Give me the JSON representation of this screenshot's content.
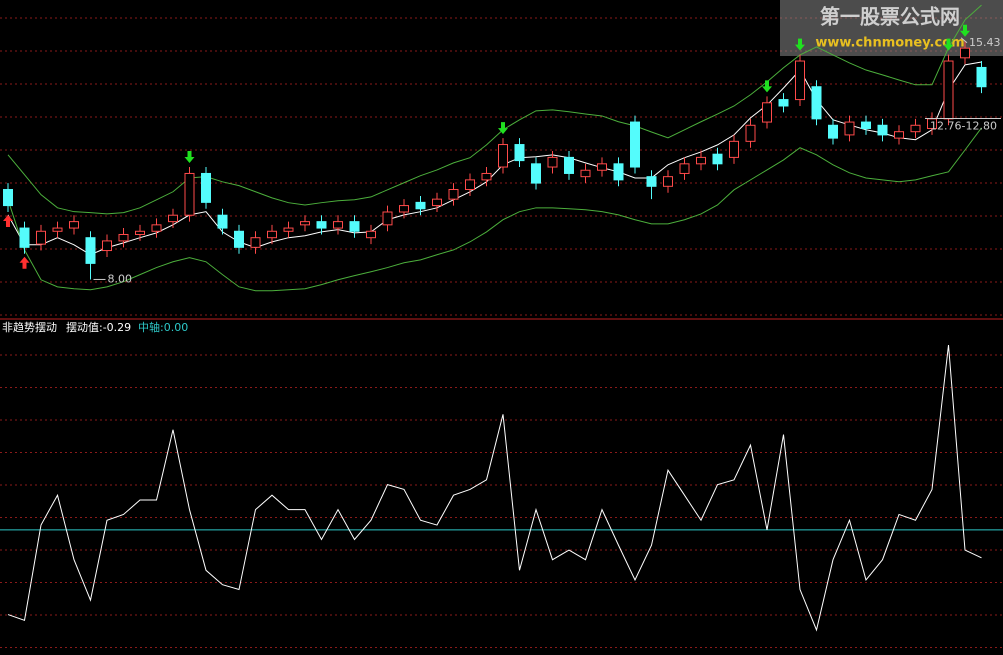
{
  "chart_data": {
    "type": "candlestick",
    "watermark": {
      "title": "第一股票公式网",
      "url": "www.chnmoney.com"
    },
    "ylim": [
      6.8,
      16.7
    ],
    "grid": true,
    "up_color": "#ff4a4a",
    "down_color": "#54fcfc",
    "open": [
      10.8,
      9.6,
      9.1,
      9.5,
      9.6,
      9.3,
      8.9,
      9.2,
      9.4,
      9.5,
      9.8,
      10.0,
      11.3,
      10.0,
      9.5,
      9.0,
      9.3,
      9.5,
      9.7,
      9.8,
      9.6,
      9.8,
      9.3,
      9.7,
      10.1,
      10.4,
      10.3,
      10.5,
      10.8,
      11.1,
      11.5,
      12.2,
      11.6,
      11.5,
      11.8,
      11.2,
      11.4,
      11.6,
      12.9,
      11.2,
      10.9,
      11.3,
      11.6,
      11.9,
      11.8,
      12.3,
      12.9,
      13.6,
      13.6,
      14.0,
      12.8,
      12.5,
      12.9,
      12.8,
      12.4,
      12.6,
      12.7,
      13.0,
      14.9,
      14.6
    ],
    "close": [
      10.3,
      9.0,
      9.5,
      9.6,
      9.8,
      8.5,
      9.2,
      9.4,
      9.5,
      9.7,
      10.0,
      11.3,
      10.4,
      9.6,
      9.0,
      9.3,
      9.5,
      9.6,
      9.8,
      9.6,
      9.8,
      9.5,
      9.5,
      10.1,
      10.3,
      10.2,
      10.5,
      10.8,
      11.1,
      11.3,
      12.2,
      11.7,
      11.0,
      11.8,
      11.3,
      11.4,
      11.6,
      11.1,
      11.5,
      10.9,
      11.2,
      11.6,
      11.8,
      11.6,
      12.3,
      12.8,
      13.5,
      13.4,
      14.8,
      13.0,
      12.4,
      12.9,
      12.7,
      12.5,
      12.6,
      12.8,
      13.0,
      14.8,
      15.2,
      14.0
    ],
    "high": [
      11.0,
      9.8,
      9.7,
      9.8,
      10.0,
      9.5,
      9.4,
      9.6,
      9.7,
      9.9,
      10.2,
      11.5,
      11.5,
      10.2,
      9.7,
      9.5,
      9.7,
      9.8,
      10.0,
      10.0,
      10.0,
      10.0,
      9.7,
      10.3,
      10.5,
      10.6,
      10.7,
      11.0,
      11.3,
      11.5,
      12.4,
      12.4,
      11.8,
      12.0,
      12.0,
      11.6,
      11.8,
      11.8,
      13.1,
      11.4,
      11.4,
      11.8,
      12.0,
      12.1,
      12.5,
      13.0,
      13.7,
      13.8,
      15.0,
      14.2,
      13.0,
      13.1,
      13.1,
      13.0,
      12.8,
      13.0,
      13.2,
      15.0,
      15.43,
      14.8
    ],
    "low": [
      10.1,
      8.8,
      8.9,
      9.3,
      9.4,
      8.0,
      8.7,
      9.0,
      9.2,
      9.3,
      9.6,
      9.8,
      10.2,
      9.4,
      8.8,
      8.8,
      9.1,
      9.3,
      9.5,
      9.4,
      9.4,
      9.3,
      9.1,
      9.5,
      9.9,
      10.0,
      10.1,
      10.3,
      10.6,
      10.9,
      11.3,
      11.5,
      10.8,
      11.3,
      11.1,
      11.0,
      11.2,
      10.9,
      11.3,
      10.5,
      10.7,
      11.1,
      11.4,
      11.4,
      11.6,
      12.1,
      12.7,
      13.2,
      13.4,
      12.8,
      12.2,
      12.3,
      12.5,
      12.3,
      12.2,
      12.4,
      12.5,
      12.8,
      14.7,
      13.8
    ],
    "bands": [
      {
        "color": "#ffffff",
        "values": [
          10.01,
          9.08,
          9.08,
          9.3,
          9.08,
          8.77,
          8.99,
          9.14,
          9.3,
          9.45,
          9.7,
          10.01,
          10.11,
          9.48,
          9.17,
          8.99,
          9.17,
          9.3,
          9.36,
          9.48,
          9.55,
          9.45,
          9.48,
          9.86,
          10.01,
          10.11,
          10.23,
          10.48,
          10.73,
          11.04,
          11.57,
          11.79,
          11.82,
          11.88,
          11.79,
          11.63,
          11.48,
          11.35,
          11.16,
          11.16,
          11.57,
          11.79,
          11.97,
          12.19,
          12.5,
          13.03,
          13.43,
          13.96,
          14.52,
          13.59,
          12.97,
          12.81,
          12.66,
          12.56,
          12.41,
          12.35,
          12.66,
          13.9,
          14.68,
          14.77
        ]
      },
      {
        "color": "#4caf3c",
        "values": [
          11.88,
          11.26,
          10.64,
          10.23,
          10.11,
          10.08,
          10.04,
          10.08,
          10.23,
          10.48,
          10.73,
          11.16,
          11.2,
          11.04,
          10.92,
          10.73,
          10.54,
          10.39,
          10.32,
          10.39,
          10.45,
          10.48,
          10.57,
          10.79,
          11.01,
          11.23,
          11.41,
          11.63,
          11.79,
          12.19,
          12.66,
          12.97,
          13.25,
          13.28,
          13.22,
          13.15,
          13.09,
          12.91,
          12.78,
          12.59,
          12.41,
          12.66,
          12.91,
          13.15,
          13.4,
          13.75,
          14.15,
          14.59,
          14.99,
          15.24,
          14.99,
          14.74,
          14.52,
          14.37,
          14.21,
          14.06,
          14.06,
          15.21,
          16.08,
          16.54
        ]
      },
      {
        "color": "#4caf3c",
        "values": [
          10.48,
          8.92,
          7.99,
          7.77,
          7.71,
          7.68,
          7.77,
          7.93,
          8.15,
          8.37,
          8.55,
          8.68,
          8.55,
          8.15,
          7.77,
          7.65,
          7.65,
          7.68,
          7.71,
          7.84,
          7.99,
          8.12,
          8.24,
          8.37,
          8.52,
          8.61,
          8.77,
          8.92,
          9.17,
          9.48,
          9.86,
          10.11,
          10.23,
          10.23,
          10.2,
          10.17,
          10.11,
          10.01,
          9.86,
          9.73,
          9.73,
          9.86,
          10.04,
          10.32,
          10.79,
          11.1,
          11.41,
          11.72,
          12.1,
          11.88,
          11.57,
          11.32,
          11.16,
          11.1,
          11.04,
          11.1,
          11.23,
          11.35,
          12.03,
          12.72
        ]
      }
    ],
    "sell_signals": [
      11,
      30,
      46,
      48,
      57,
      58
    ],
    "buy_signals": [
      0,
      1
    ],
    "annotations": [
      {
        "value": 8,
        "label": "8.00",
        "index": 5
      },
      {
        "value": 15.43,
        "label": "15.43",
        "index": 58
      },
      {
        "label": "12.76-12.80",
        "values": [
          12.76,
          12.8
        ]
      }
    ],
    "oscillator": {
      "type": "line",
      "title": "非趋势摆动",
      "legend": [
        {
          "label": "摆动值:-0.29",
          "color": "#ffffff"
        },
        {
          "label": "中轴:0.00",
          "color": "#2ec8c8"
        }
      ],
      "ylim": [
        -1.3,
        2.18
      ],
      "midline": 0,
      "color": "#ffffff",
      "values": [
        -0.88,
        -0.94,
        0.05,
        0.36,
        -0.31,
        -0.73,
        0.1,
        0.16,
        0.31,
        0.31,
        1.04,
        0.21,
        -0.42,
        -0.57,
        -0.62,
        0.21,
        0.36,
        0.21,
        0.21,
        -0.1,
        0.21,
        -0.1,
        0.1,
        0.47,
        0.42,
        0.1,
        0.05,
        0.36,
        0.42,
        0.52,
        1.2,
        -0.42,
        0.21,
        -0.31,
        -0.21,
        -0.31,
        0.21,
        -0.16,
        -0.52,
        -0.16,
        0.62,
        0.36,
        0.1,
        0.47,
        0.52,
        0.88,
        0.0,
        0.99,
        -0.62,
        -1.04,
        -0.31,
        0.1,
        -0.52,
        -0.31,
        0.16,
        0.1,
        0.42,
        1.92,
        -0.21,
        -0.29
      ]
    }
  }
}
